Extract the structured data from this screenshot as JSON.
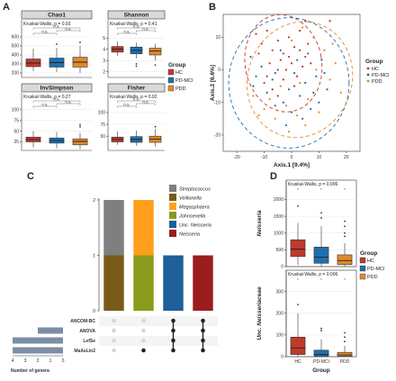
{
  "colors": {
    "HC": "#c0392b",
    "PD-MCI": "#1f6fad",
    "PDD": "#e08a2c"
  },
  "panels": {
    "A": "A",
    "B": "B",
    "C": "C",
    "D": "D"
  },
  "chart_data": [
    {
      "panel": "A",
      "type": "box",
      "groups": [
        "HC",
        "PD-MCI",
        "PDD"
      ],
      "legend": {
        "title": "Group",
        "items": [
          "HC",
          "PD-MCI",
          "PDD"
        ]
      },
      "facets": [
        {
          "title": "Chao1",
          "stat": "Kruskal-Wallis, p = 0.93",
          "yticks": [
            200,
            300,
            400,
            500,
            600
          ],
          "ylim": [
            150,
            650
          ],
          "boxes": [
            {
              "group": "HC",
              "min": 220,
              "q1": 270,
              "median": 310,
              "q3": 355,
              "max": 470
            },
            {
              "group": "PD-MCI",
              "min": 210,
              "q1": 265,
              "median": 315,
              "q3": 365,
              "max": 480,
              "outliers": [
                520
              ]
            },
            {
              "group": "PDD",
              "min": 200,
              "q1": 265,
              "median": 320,
              "q3": 375,
              "max": 500,
              "outliers": [
                540
              ]
            }
          ],
          "ns": [
            "n.s.",
            "n.s.",
            "n.s."
          ]
        },
        {
          "title": "Shannon",
          "stat": "Kruskal-Wallis, p = 0.41",
          "yticks": [
            2,
            3,
            4,
            5
          ],
          "ylim": [
            1.5,
            5.5
          ],
          "boxes": [
            {
              "group": "HC",
              "min": 3.4,
              "q1": 3.75,
              "median": 4.0,
              "q3": 4.25,
              "max": 4.7
            },
            {
              "group": "PD-MCI",
              "min": 3.2,
              "q1": 3.6,
              "median": 3.9,
              "q3": 4.2,
              "max": 4.6,
              "outliers": [
                2.7,
                2.5
              ]
            },
            {
              "group": "PDD",
              "min": 3.0,
              "q1": 3.5,
              "median": 3.85,
              "q3": 4.1,
              "max": 4.5,
              "outliers": [
                2.6
              ]
            }
          ],
          "ns": [
            "n.s.",
            "n.s.",
            "n.s."
          ]
        },
        {
          "title": "InvSimpson",
          "stat": "Kruskal-Wallis, p = 0.27",
          "yticks": [
            25,
            50,
            75,
            100
          ],
          "ylim": [
            5,
            110
          ],
          "boxes": [
            {
              "group": "HC",
              "min": 12,
              "q1": 25,
              "median": 30,
              "q3": 36,
              "max": 50
            },
            {
              "group": "PD-MCI",
              "min": 10,
              "q1": 22,
              "median": 28,
              "q3": 34,
              "max": 48
            },
            {
              "group": "PDD",
              "min": 8,
              "q1": 18,
              "median": 26,
              "q3": 32,
              "max": 46,
              "outliers": [
                60,
                65
              ]
            }
          ],
          "ns": [
            "n.s.",
            "n.s.",
            "n.s."
          ]
        },
        {
          "title": "Fisher",
          "stat": "Kruskal-Wallis, p = 0.92",
          "yticks": [
            50,
            75,
            100
          ],
          "ylim": [
            20,
            115
          ],
          "boxes": [
            {
              "group": "HC",
              "min": 32,
              "q1": 38,
              "median": 43,
              "q3": 48,
              "max": 60
            },
            {
              "group": "PD-MCI",
              "min": 30,
              "q1": 37,
              "median": 43,
              "q3": 49,
              "max": 62
            },
            {
              "group": "PDD",
              "min": 28,
              "q1": 37,
              "median": 44,
              "q3": 50,
              "max": 65,
              "outliers": [
                70
              ]
            }
          ],
          "ns": [
            "n.s.",
            "n.s.",
            "n.s."
          ]
        }
      ]
    },
    {
      "panel": "B",
      "type": "scatter",
      "xlabel": "Axis.1 [9.4%]",
      "ylabel": "Axis.2 [6.6%]",
      "xticks": [
        -20,
        -10,
        0,
        10,
        20
      ],
      "yticks": [
        -20,
        -10,
        0,
        10
      ],
      "xlim": [
        -25,
        25
      ],
      "ylim": [
        -25,
        17
      ],
      "legend": {
        "title": "Group",
        "items": [
          "HC",
          "PD-MCI",
          "PDD"
        ]
      },
      "series": [
        {
          "name": "HC",
          "points": [
            [
              -13,
              11
            ],
            [
              -11,
              8
            ],
            [
              -9,
              12
            ],
            [
              -7,
              6
            ],
            [
              -5,
              9
            ],
            [
              -3,
              5
            ],
            [
              -1,
              10
            ],
            [
              1,
              7
            ],
            [
              3,
              12
            ],
            [
              5,
              4
            ],
            [
              -8,
              2
            ],
            [
              -6,
              -1
            ],
            [
              -4,
              3
            ],
            [
              -2,
              0
            ],
            [
              0,
              2
            ],
            [
              2,
              -2
            ],
            [
              4,
              1
            ],
            [
              -10,
              -4
            ],
            [
              -12,
              5
            ],
            [
              6,
              8
            ],
            [
              -7,
              -6
            ],
            [
              -3,
              -3
            ],
            [
              1,
              -5
            ],
            [
              -1,
              4
            ],
            [
              3,
              6
            ],
            [
              14,
              15
            ],
            [
              5,
              15
            ],
            [
              -5,
              -8
            ],
            [
              -9,
              -2
            ],
            [
              7,
              2
            ]
          ]
        },
        {
          "name": "PD-MCI",
          "points": [
            [
              -15,
              4
            ],
            [
              -13,
              -2
            ],
            [
              -11,
              1
            ],
            [
              -9,
              -7
            ],
            [
              -7,
              -3
            ],
            [
              -5,
              0
            ],
            [
              -3,
              -10
            ],
            [
              -1,
              -6
            ],
            [
              1,
              -1
            ],
            [
              3,
              -8
            ],
            [
              5,
              -4
            ],
            [
              7,
              -12
            ],
            [
              9,
              -2
            ],
            [
              11,
              3
            ],
            [
              13,
              -6
            ],
            [
              -4,
              6
            ],
            [
              0,
              -13
            ],
            [
              2,
              3
            ],
            [
              -6,
              -11
            ],
            [
              8,
              -7
            ],
            [
              4,
              -15
            ],
            [
              -2,
              -17
            ],
            [
              10,
              -10
            ],
            [
              -14,
              -5
            ],
            [
              6,
              5
            ],
            [
              12,
              -1
            ]
          ]
        },
        {
          "name": "PDD",
          "points": [
            [
              -14,
              -8
            ],
            [
              -10,
              -12
            ],
            [
              -6,
              -15
            ],
            [
              -2,
              -11
            ],
            [
              2,
              -14
            ],
            [
              6,
              -9
            ],
            [
              10,
              -13
            ],
            [
              14,
              -3
            ],
            [
              16,
              2
            ],
            [
              12,
              6
            ],
            [
              8,
              10
            ],
            [
              4,
              13
            ],
            [
              0,
              9
            ],
            [
              -4,
              -5
            ],
            [
              -8,
              -9
            ],
            [
              18,
              -7
            ],
            [
              -12,
              -14
            ],
            [
              3,
              -4
            ],
            [
              9,
              0
            ],
            [
              -1,
              -19
            ],
            [
              5,
              -17
            ],
            [
              15,
              8
            ]
          ]
        }
      ],
      "ellipses": [
        {
          "group": "HC",
          "cx": -3,
          "cy": 2,
          "rx": 14,
          "ry": 15,
          "angle": -10
        },
        {
          "group": "PD-MCI",
          "cx": -1,
          "cy": -4,
          "rx": 22,
          "ry": 20,
          "angle": 0
        },
        {
          "group": "PDD",
          "cx": 3,
          "cy": -3,
          "rx": 19,
          "ry": 18,
          "angle": 20
        }
      ]
    },
    {
      "panel": "C",
      "type": "upset",
      "ylim": [
        0,
        2
      ],
      "yticks": [
        0,
        1,
        2
      ],
      "legend_items": [
        {
          "label": "Streptococcus",
          "color": "#7f7f7f"
        },
        {
          "label": "Veillonella",
          "color": "#7a5a18"
        },
        {
          "label": "Megasphaera",
          "color": "#ff9f1c"
        },
        {
          "label": "Johnsenella",
          "color": "#8a9a1a"
        },
        {
          "label": "Unc. Neisseria",
          "color": "#1f5f9a"
        },
        {
          "label": "Neisseria",
          "color": "#9c1c1c"
        }
      ],
      "bars": [
        {
          "segments": [
            {
              "genus": "Veillonella",
              "value": 1
            },
            {
              "genus": "Streptococcus",
              "value": 1
            }
          ]
        },
        {
          "segments": [
            {
              "genus": "Johnsenella",
              "value": 1
            },
            {
              "genus": "Megasphaera",
              "value": 1
            }
          ]
        },
        {
          "segments": [
            {
              "genus": "Unc. Neisseria",
              "value": 1
            }
          ]
        },
        {
          "segments": [
            {
              "genus": "Neisseria",
              "value": 1
            }
          ]
        }
      ],
      "methods": [
        "ANCOM-BC",
        "ANOVA",
        "LefSe",
        "MaAsLin2"
      ],
      "method_counts": [
        0,
        2,
        4,
        4
      ],
      "membership": [
        [
          false,
          false,
          false,
          false
        ],
        [
          false,
          false,
          false,
          true
        ],
        [
          true,
          true,
          true,
          true
        ],
        [
          true,
          true,
          true,
          true
        ]
      ],
      "count_ticks": [
        4,
        3,
        2,
        1,
        0
      ],
      "count_label": "Number of genera"
    },
    {
      "panel": "D",
      "type": "box",
      "groups": [
        "HC",
        "PD-MCI",
        "PDD"
      ],
      "xlabel": "Group",
      "legend": {
        "title": "Group",
        "items": [
          "HC",
          "PD-MCI",
          "PDD"
        ]
      },
      "facets": [
        {
          "ylabel": "Neisseria",
          "stat": "Kruskal-Wallis, p = 0.006",
          "yticks": [
            0,
            500,
            1000,
            1500,
            2000
          ],
          "ylim": [
            0,
            2200
          ],
          "boxes": [
            {
              "group": "HC",
              "min": 50,
              "q1": 300,
              "median": 520,
              "q3": 800,
              "max": 1300,
              "outliers": [
                1800
              ]
            },
            {
              "group": "PD-MCI",
              "min": 0,
              "q1": 100,
              "median": 280,
              "q3": 580,
              "max": 1200,
              "outliers": [
                1450,
                1600
              ]
            },
            {
              "group": "PDD",
              "min": 0,
              "q1": 60,
              "median": 180,
              "q3": 350,
              "max": 700,
              "outliers": [
                900,
                1000,
                1200,
                1350
              ]
            }
          ],
          "ns": [
            "*",
            "*",
            "*"
          ]
        },
        {
          "ylabel": "Unc. Neisseriaceae",
          "stat": "Kruskal-Wallis, p = 0.006",
          "yticks": [
            0,
            100,
            200,
            300
          ],
          "ylim": [
            0,
            340
          ],
          "boxes": [
            {
              "group": "HC",
              "min": 0,
              "q1": 10,
              "median": 40,
              "q3": 90,
              "max": 200,
              "outliers": [
                240
              ]
            },
            {
              "group": "PD-MCI",
              "min": 0,
              "q1": 2,
              "median": 10,
              "q3": 30,
              "max": 80,
              "outliers": [
                120,
                130
              ]
            },
            {
              "group": "PDD",
              "min": 0,
              "q1": 2,
              "median": 8,
              "q3": 20,
              "max": 50,
              "outliers": [
                70,
                90,
                110
              ]
            }
          ],
          "ns": [
            "*",
            "*",
            "*"
          ]
        }
      ]
    }
  ]
}
